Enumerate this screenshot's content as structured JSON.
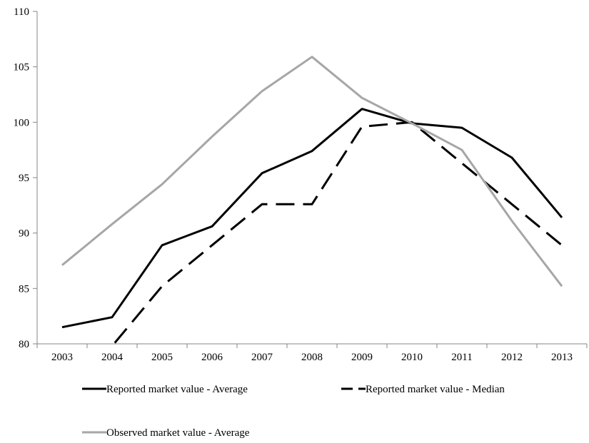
{
  "chart_data": {
    "type": "line",
    "title": "",
    "xlabel": "",
    "ylabel": "",
    "categories": [
      "2003",
      "2004",
      "2005",
      "2006",
      "2007",
      "2008",
      "2009",
      "2010",
      "2011",
      "2012",
      "2013"
    ],
    "ylim": [
      80,
      110
    ],
    "yticks": [
      80,
      85,
      90,
      95,
      100,
      105,
      110
    ],
    "grid": false,
    "legend_position": "bottom",
    "series": [
      {
        "name": "Reported market value - Average",
        "color": "#000000",
        "dash": "solid",
        "values": [
          81.5,
          82.4,
          88.9,
          90.6,
          95.4,
          97.4,
          101.2,
          99.9,
          99.5,
          96.8,
          91.4
        ]
      },
      {
        "name": "Reported market value - Median",
        "color": "#000000",
        "dash": "dashed",
        "values": [
          79.5,
          79.8,
          85.2,
          88.9,
          92.6,
          92.6,
          99.6,
          100.0,
          96.3,
          92.6,
          88.9
        ]
      },
      {
        "name": "Observed market value - Average",
        "color": "#a6a6a6",
        "dash": "solid",
        "values": [
          87.1,
          90.8,
          94.4,
          98.7,
          102.8,
          105.9,
          102.2,
          99.9,
          97.5,
          91.1,
          85.2
        ]
      }
    ]
  }
}
